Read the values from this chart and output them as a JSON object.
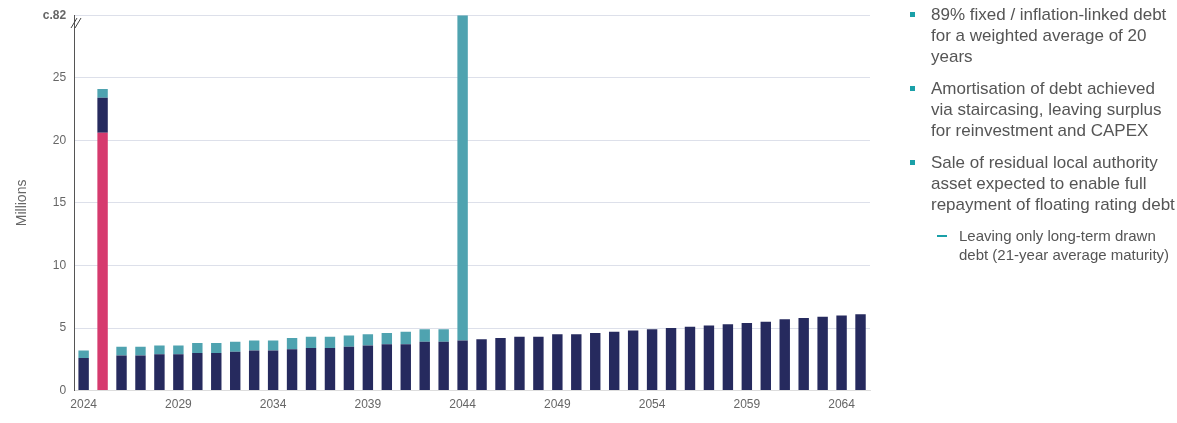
{
  "chart_data": {
    "type": "bar",
    "stacked": true,
    "ylabel": "Millions",
    "categories": [
      "2024",
      null,
      null,
      null,
      null,
      "2029",
      null,
      null,
      null,
      null,
      "2034",
      null,
      null,
      null,
      null,
      "2039",
      null,
      null,
      null,
      null,
      "2044",
      null,
      null,
      null,
      null,
      "2049",
      null,
      null,
      null,
      null,
      "2054",
      null,
      null,
      null,
      null,
      "2059",
      null,
      null,
      null,
      null,
      "2064",
      null
    ],
    "series": [
      {
        "color": "#d63a6e",
        "values": [
          null,
          20.6,
          null,
          null,
          null,
          null,
          null,
          null,
          null,
          null,
          null,
          null,
          null,
          null,
          null,
          null,
          null,
          null,
          null,
          null,
          null,
          null,
          null,
          null,
          null,
          null,
          null,
          null,
          null,
          null,
          null,
          null,
          null,
          null,
          null,
          null,
          null,
          null,
          null,
          null,
          null,
          null
        ]
      },
      {
        "color": "#262a5e",
        "values": [
          2.6,
          2.8,
          2.8,
          2.8,
          2.9,
          2.9,
          3.0,
          3.0,
          3.1,
          3.2,
          3.2,
          3.3,
          3.4,
          3.4,
          3.5,
          3.6,
          3.7,
          3.7,
          3.9,
          3.9,
          4.0,
          4.1,
          4.2,
          4.3,
          4.3,
          4.5,
          4.5,
          4.6,
          4.7,
          4.8,
          4.9,
          5.0,
          5.1,
          5.2,
          5.3,
          5.4,
          5.5,
          5.7,
          5.8,
          5.9,
          6.0,
          6.1
        ]
      },
      {
        "color": "#4fa3b0",
        "values": [
          0.6,
          0.7,
          0.7,
          0.7,
          0.7,
          0.7,
          0.8,
          0.8,
          0.8,
          0.8,
          0.8,
          0.9,
          0.9,
          0.9,
          0.9,
          0.9,
          0.9,
          1.0,
          1.0,
          1.0,
          26.0,
          null,
          null,
          null,
          null,
          null,
          null,
          null,
          null,
          null,
          null,
          null,
          null,
          null,
          null,
          null,
          null,
          null,
          null,
          null,
          null,
          null
        ]
      }
    ],
    "ylim": [
      0,
      30
    ],
    "yticks": [
      0,
      5,
      10,
      15,
      20,
      25,
      {
        "value": 30,
        "label": "c.82"
      }
    ],
    "grid": "y",
    "annotations": [
      "89% fixed / inflation-linked debt for a weighted average of 20 years",
      "Amortisation of debt achieved via staircasing, leaving surplus for reinvestment and CAPEX",
      "Sale of residual local authority asset expected to enable full repayment of floating rating debt",
      "Leaving only long-term drawn debt (21-year average maturity)"
    ]
  }
}
